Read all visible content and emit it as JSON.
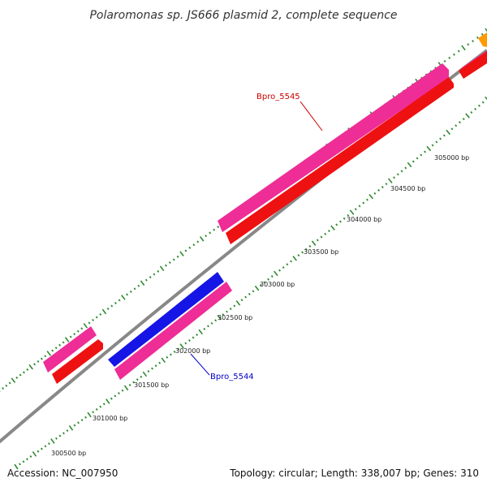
{
  "title": "Polaromonas sp. JS666 plasmid 2, complete sequence",
  "footer": {
    "accession": "Accession: NC_007950",
    "summary": "Topology: circular; Length: 338,007 bp; Genes: 310"
  },
  "colors": {
    "backbone": "#888888",
    "tick_green": "#2f8a2f",
    "magenta": "#ee2d96",
    "red": "#ee1111",
    "blue": "#1515e6",
    "orange": "#ff9a00",
    "label_red": "#cc0000",
    "label_blue": "#0000cc"
  },
  "ruler_labels": [
    "300500 bp",
    "301000 bp",
    "301500 bp",
    "302000 bp",
    "302500 bp",
    "303000 bp",
    "303500 bp",
    "304000 bp",
    "304500 bp",
    "305000 bp"
  ],
  "gene_labels": [
    {
      "text": "Bpro_5545",
      "color": "label_red"
    },
    {
      "text": "Bpro_5544",
      "color": "label_blue"
    }
  ]
}
